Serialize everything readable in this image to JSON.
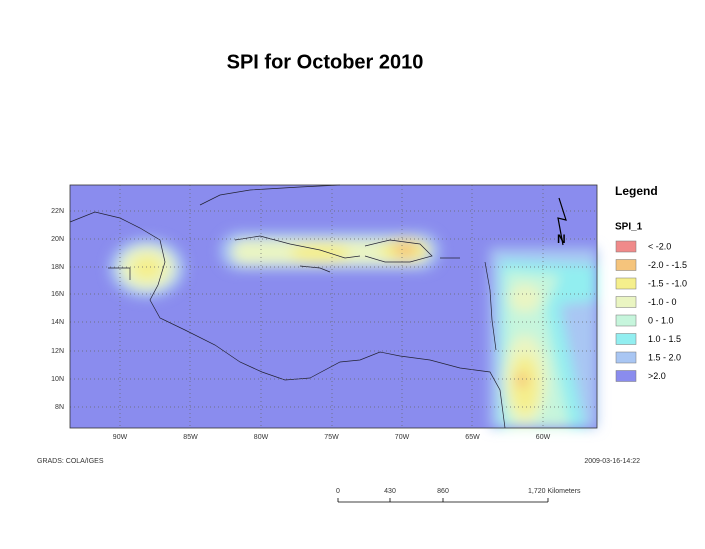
{
  "header": {
    "title": "SPI for  October  2010"
  },
  "map": {
    "lat_labels": [
      "22N",
      "20N",
      "18N",
      "16N",
      "14N",
      "12N",
      "10N",
      "8N"
    ],
    "lon_labels": [
      "90W",
      "85W",
      "80W",
      "75W",
      "70W",
      "65W",
      "60W"
    ],
    "north_label": "N",
    "footer_left": "GRADS: COLA/IGES",
    "footer_right": "2009-03-16-14:22"
  },
  "legend": {
    "title": "Legend",
    "layer": "SPI_1",
    "items": [
      {
        "label": "< -2.0",
        "color": "#f08a8a"
      },
      {
        "label": "-2.0 - -1.5",
        "color": "#f5c47c"
      },
      {
        "label": "-1.5 - -1.0",
        "color": "#f5ef8c"
      },
      {
        "label": "-1.0 - 0",
        "color": "#eaf5c2"
      },
      {
        "label": "0 - 1.0",
        "color": "#c6f5dc"
      },
      {
        "label": "1.0 - 1.5",
        "color": "#92eef0"
      },
      {
        "label": "1.5 - 2.0",
        "color": "#a9c6f3"
      },
      {
        "label": ">2.0",
        "color": "#8a8cee"
      }
    ]
  },
  "scale_bar": {
    "labels": [
      "0",
      "430",
      "860",
      "1,720 Kilometers"
    ]
  }
}
